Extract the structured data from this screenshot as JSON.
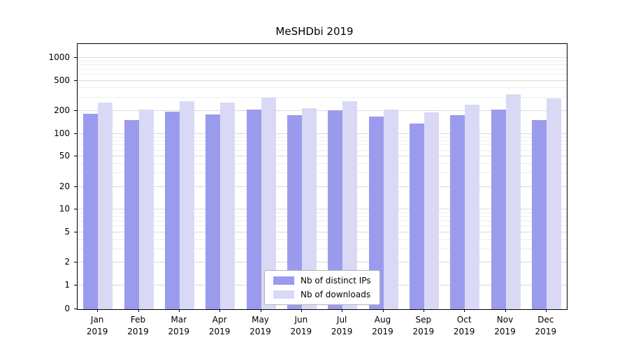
{
  "title": "MeSHDbi 2019",
  "chart_data": {
    "type": "bar",
    "scale": "symlog",
    "categories": [
      "Jan",
      "Feb",
      "Mar",
      "Apr",
      "May",
      "Jun",
      "Jul",
      "Aug",
      "Sep",
      "Oct",
      "Nov",
      "Dec"
    ],
    "category_year": "2019",
    "series": [
      {
        "name": "Nb of distinct IPs",
        "color": "#9b9bee",
        "values": [
          185,
          150,
          197,
          180,
          207,
          175,
          203,
          170,
          135,
          177,
          210,
          152
        ]
      },
      {
        "name": "Nb of downloads",
        "color": "#d9d9f6",
        "values": [
          255,
          210,
          270,
          258,
          300,
          215,
          268,
          207,
          190,
          240,
          330,
          295
        ]
      }
    ],
    "yticks": [
      0,
      1,
      2,
      5,
      10,
      20,
      50,
      100,
      200,
      500,
      1000
    ],
    "ylim": [
      0,
      1500
    ],
    "grid": "horizontal",
    "legend_position": "lower center"
  }
}
